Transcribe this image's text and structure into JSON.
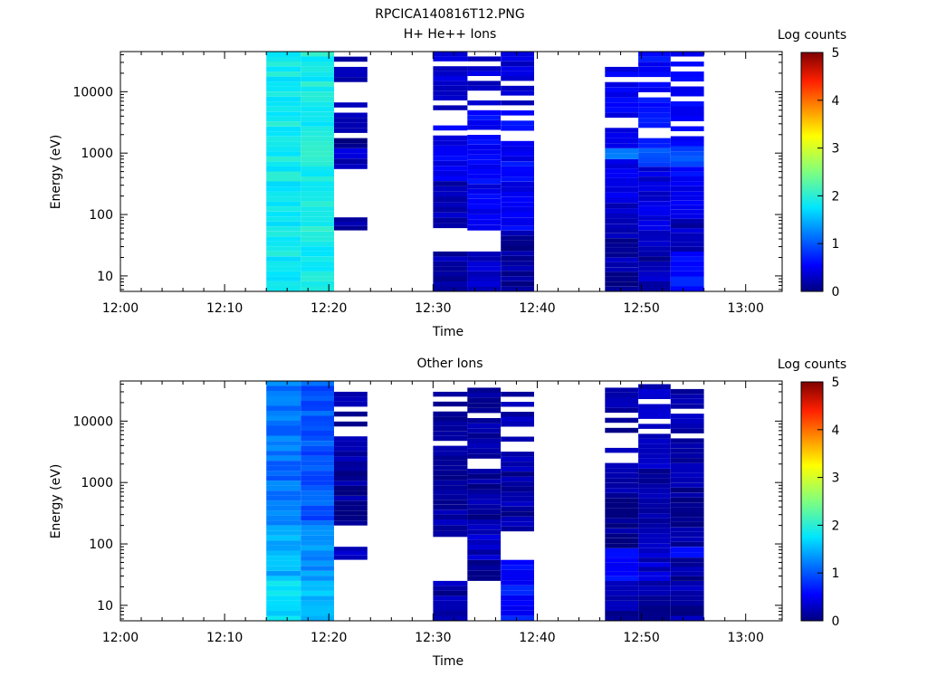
{
  "file_title": "RPCICA140816T12.PNG",
  "colorbar": {
    "label": "Log counts",
    "range": [
      0,
      5
    ],
    "ticks": [
      "0",
      "1",
      "2",
      "3",
      "4",
      "5"
    ]
  },
  "chart_data": [
    {
      "type": "heatmap",
      "title": "H+ He++ Ions",
      "xlabel": "Time",
      "ylabel": "Energy (eV)",
      "x_ticks": [
        "12:00",
        "12:10",
        "12:20",
        "12:30",
        "12:40",
        "12:50",
        "13:00"
      ],
      "x_range_min": [
        0,
        63.5
      ],
      "y_ticks": [
        10,
        100,
        1000,
        10000
      ],
      "y_tick_labels": [
        "10",
        "100",
        "1000",
        "10000"
      ],
      "ylim": [
        5.6,
        45000
      ],
      "y_scale": "log",
      "colorbar": "Log counts",
      "columns": [
        {
          "t": [
            14,
            17.3
          ],
          "bands": [
            [
              5.6,
              45000,
              1.85
            ]
          ]
        },
        {
          "t": [
            17.3,
            20.5
          ],
          "bands": [
            [
              5.6,
              45000,
              1.9
            ]
          ]
        },
        {
          "t": [
            20.5,
            23.7
          ],
          "bands": [
            [
              55,
              90,
              0.1
            ],
            [
              550,
              1200,
              0.3
            ],
            [
              1200,
              45000,
              0.15
            ]
          ]
        },
        {
          "t": [
            30,
            33.3
          ],
          "bands": [
            [
              5.6,
              25,
              0.2
            ],
            [
              60,
              350,
              0.3
            ],
            [
              350,
              5000,
              0.45
            ],
            [
              5000,
              45000,
              0.3
            ]
          ]
        },
        {
          "t": [
            33.3,
            36.5
          ],
          "bands": [
            [
              5.6,
              25,
              0.25
            ],
            [
              55,
              150,
              0.4
            ],
            [
              150,
              6000,
              0.5
            ],
            [
              6000,
              45000,
              0.3
            ]
          ]
        },
        {
          "t": [
            36.5,
            39.7
          ],
          "bands": [
            [
              5.6,
              55,
              0.1
            ],
            [
              55,
              90,
              0.6
            ],
            [
              90,
              6000,
              0.55
            ],
            [
              6000,
              45000,
              0.3
            ]
          ]
        },
        {
          "t": [
            46.5,
            49.7
          ],
          "bands": [
            [
              5.6,
              85,
              0.15
            ],
            [
              85,
              280,
              0.35
            ],
            [
              280,
              800,
              0.5
            ],
            [
              800,
              1200,
              1.1
            ],
            [
              1200,
              45000,
              0.45
            ]
          ]
        },
        {
          "t": [
            49.7,
            52.8
          ],
          "bands": [
            [
              5.6,
              25,
              0.2
            ],
            [
              25,
              55,
              0.35
            ],
            [
              55,
              600,
              0.45
            ],
            [
              600,
              1200,
              1.0
            ],
            [
              1200,
              45000,
              0.55
            ]
          ]
        },
        {
          "t": [
            52.8,
            56
          ],
          "bands": [
            [
              5.6,
              25,
              0.7
            ],
            [
              25,
              85,
              0.25
            ],
            [
              85,
              200,
              0.6
            ],
            [
              200,
              600,
              0.55
            ],
            [
              600,
              1300,
              0.9
            ],
            [
              1300,
              45000,
              0.5
            ]
          ]
        }
      ]
    },
    {
      "type": "heatmap",
      "title": "Other Ions",
      "xlabel": "Time",
      "ylabel": "Energy (eV)",
      "x_ticks": [
        "12:00",
        "12:10",
        "12:20",
        "12:30",
        "12:40",
        "12:50",
        "13:00"
      ],
      "x_range_min": [
        0,
        63.5
      ],
      "y_ticks": [
        10,
        100,
        1000,
        10000
      ],
      "y_tick_labels": [
        "10",
        "100",
        "1000",
        "10000"
      ],
      "ylim": [
        5.6,
        45000
      ],
      "y_scale": "log",
      "colorbar": "Log counts",
      "columns": [
        {
          "t": [
            14,
            17.3
          ],
          "bands": [
            [
              5.6,
              25,
              1.75
            ],
            [
              25,
              200,
              1.5
            ],
            [
              200,
              45000,
              1.15
            ]
          ]
        },
        {
          "t": [
            17.3,
            20.5
          ],
          "bands": [
            [
              5.6,
              25,
              1.55
            ],
            [
              25,
              200,
              1.35
            ],
            [
              200,
              45000,
              1.0
            ]
          ]
        },
        {
          "t": [
            20.5,
            23.7
          ],
          "bands": [
            [
              55,
              90,
              0.3
            ],
            [
              200,
              30000,
              0.1
            ]
          ]
        },
        {
          "t": [
            30,
            33.3
          ],
          "bands": [
            [
              5.6,
              25,
              0.2
            ],
            [
              130,
              250,
              0.15
            ],
            [
              250,
              30000,
              0.1
            ]
          ]
        },
        {
          "t": [
            33.3,
            36.5
          ],
          "bands": [
            [
              25,
              55,
              0.15
            ],
            [
              55,
              250,
              0.3
            ],
            [
              250,
              35000,
              0.1
            ]
          ]
        },
        {
          "t": [
            36.5,
            39.7
          ],
          "bands": [
            [
              5.6,
              55,
              0.6
            ],
            [
              160,
              30000,
              0.15
            ]
          ]
        },
        {
          "t": [
            46.5,
            49.7
          ],
          "bands": [
            [
              5.6,
              25,
              0.15
            ],
            [
              25,
              85,
              0.55
            ],
            [
              85,
              35000,
              0.1
            ]
          ]
        },
        {
          "t": [
            49.7,
            52.8
          ],
          "bands": [
            [
              5.6,
              25,
              0.15
            ],
            [
              25,
              85,
              0.3
            ],
            [
              85,
              40000,
              0.2
            ]
          ]
        },
        {
          "t": [
            52.8,
            56
          ],
          "bands": [
            [
              5.6,
              25,
              0.15
            ],
            [
              25,
              60,
              0.1
            ],
            [
              60,
              90,
              0.5
            ],
            [
              90,
              40000,
              0.15
            ]
          ]
        }
      ]
    }
  ]
}
